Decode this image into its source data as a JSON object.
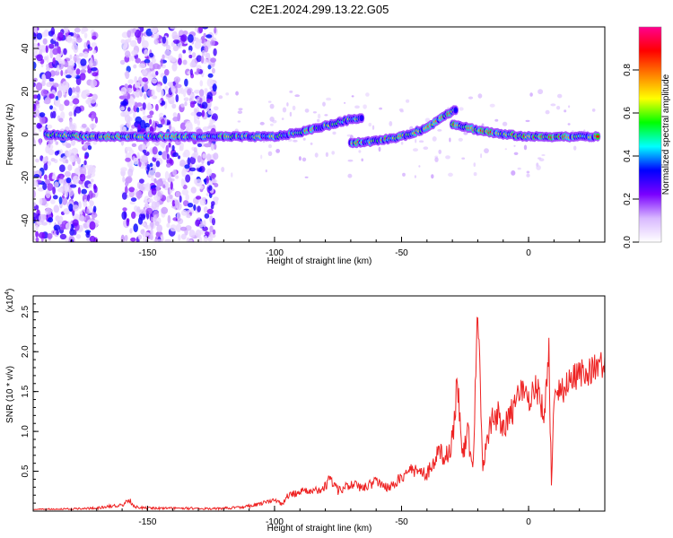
{
  "figure": {
    "title": "C2E1.2024.299.13.22.G05"
  },
  "chart_data": [
    {
      "type": "heatmap",
      "title": "C2E1.2024.299.13.22.G05",
      "xlabel": "Height of straight line (km)",
      "ylabel": "Frequency (Hz)",
      "xlim": [
        -195,
        30
      ],
      "ylim": [
        -50,
        50
      ],
      "xticks": [
        -150,
        -100,
        -50,
        0
      ],
      "yticks": [
        -40,
        -20,
        0,
        20,
        40
      ],
      "colorbar": {
        "label": "Normalized spectral amplitude",
        "range": [
          0,
          1
        ],
        "ticks": [
          0.0,
          0.2,
          0.4,
          0.6,
          0.8
        ],
        "colors": [
          "#ffffff",
          "#d8b8ff",
          "#7a00ff",
          "#0000ff",
          "#00ffff",
          "#00ff00",
          "#ffff00",
          "#ff8000",
          "#ff0000",
          "#ff0090"
        ]
      },
      "noise_bands_km": [
        [
          -195,
          -170
        ],
        [
          -160,
          -123
        ]
      ],
      "traces": [
        {
          "name": "",
          "points": [
            [
              -190,
              0
            ],
            [
              -170,
              -1
            ],
            [
              -150,
              -1
            ],
            [
              -140,
              -1
            ],
            [
              -120,
              -1
            ],
            [
              -100,
              -1
            ],
            [
              -90,
              1
            ],
            [
              -80,
              4
            ],
            [
              -70,
              7
            ],
            [
              -65,
              8
            ]
          ],
          "peak": 0.8
        },
        {
          "name": "",
          "points": [
            [
              -70,
              -4
            ],
            [
              -60,
              -3
            ],
            [
              -50,
              -1
            ],
            [
              -40,
              3
            ],
            [
              -33,
              9
            ],
            [
              -28,
              12
            ]
          ],
          "peak": 0.85
        },
        {
          "name": "",
          "points": [
            [
              -30,
              5
            ],
            [
              -20,
              2
            ],
            [
              -10,
              0
            ],
            [
              0,
              -1
            ],
            [
              10,
              -1
            ],
            [
              20,
              -1
            ],
            [
              28,
              -1
            ]
          ],
          "peak": 0.9
        }
      ]
    },
    {
      "type": "line",
      "xlabel": "Height of straight line (km)",
      "ylabel": "SNR (10 * v/v)",
      "scale_label": "(x10",
      "scale_exponent": "4",
      "xlim": [
        -195,
        30
      ],
      "ylim": [
        0,
        2.7
      ],
      "xticks": [
        -150,
        -100,
        -50,
        0
      ],
      "yticks": [
        0.5,
        1.0,
        1.5,
        2.0,
        2.5
      ],
      "color": "#ee2222",
      "x": [
        -195,
        -180,
        -170,
        -165,
        -160,
        -157,
        -155,
        -150,
        -140,
        -130,
        -125,
        -120,
        -115,
        -110,
        -105,
        -100,
        -97,
        -95,
        -90,
        -85,
        -80,
        -78,
        -75,
        -70,
        -65,
        -60,
        -55,
        -50,
        -45,
        -40,
        -35,
        -33,
        -30,
        -28,
        -26,
        -24,
        -22,
        -20,
        -18,
        -15,
        -12,
        -10,
        -6,
        -3,
        0,
        3,
        6,
        8,
        9,
        10,
        11,
        13,
        16,
        20,
        25,
        30
      ],
      "y": [
        0.03,
        0.04,
        0.05,
        0.08,
        0.1,
        0.17,
        0.07,
        0.05,
        0.05,
        0.05,
        0.04,
        0.05,
        0.06,
        0.08,
        0.12,
        0.18,
        0.1,
        0.22,
        0.3,
        0.28,
        0.38,
        0.5,
        0.3,
        0.42,
        0.35,
        0.45,
        0.35,
        0.5,
        0.62,
        0.55,
        0.88,
        0.75,
        1.05,
        1.85,
        0.8,
        1.2,
        0.6,
        2.7,
        0.7,
        1.3,
        1.4,
        1.25,
        1.45,
        1.7,
        1.6,
        1.75,
        1.4,
        2.18,
        0.45,
        1.55,
        1.75,
        1.7,
        1.8,
        1.9,
        1.95,
        2.05
      ],
      "noise": 0.35
    }
  ]
}
